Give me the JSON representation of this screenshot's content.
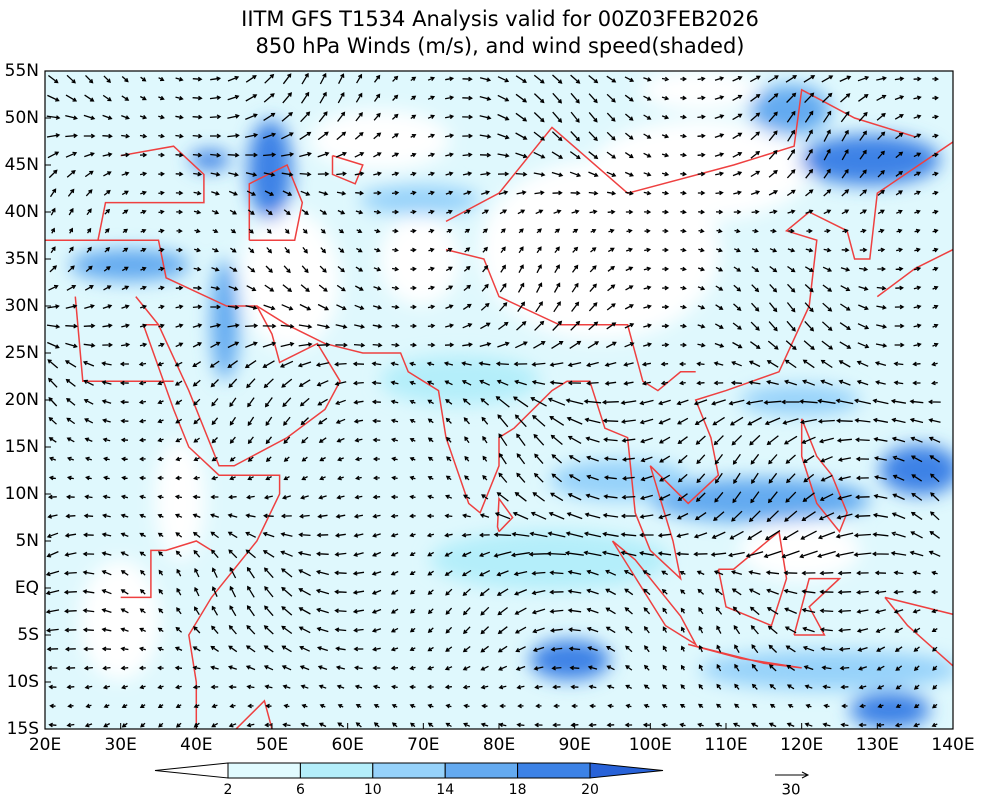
{
  "header": {
    "title": "IITM GFS T1534 Analysis valid for 00Z03FEB2026",
    "subtitle": "850 hPa Winds (m/s), and wind speed(shaded)"
  },
  "axes": {
    "lon_labels": [
      "20E",
      "30E",
      "40E",
      "50E",
      "60E",
      "70E",
      "80E",
      "90E",
      "100E",
      "110E",
      "120E",
      "130E",
      "140E"
    ],
    "lat_labels": [
      "55N",
      "50N",
      "45N",
      "40N",
      "35N",
      "30N",
      "25N",
      "20N",
      "15N",
      "10N",
      "5N",
      "EQ",
      "5S",
      "10S",
      "15S"
    ]
  },
  "colorbar": {
    "labels": [
      "2",
      "6",
      "10",
      "14",
      "18",
      "20"
    ],
    "colors": [
      "#ffffff",
      "#e1fbff",
      "#b4eefa",
      "#96d2fa",
      "#64aaf0",
      "#3c82e6",
      "#2862d8"
    ]
  },
  "reference_vector": {
    "label": "30"
  }
}
